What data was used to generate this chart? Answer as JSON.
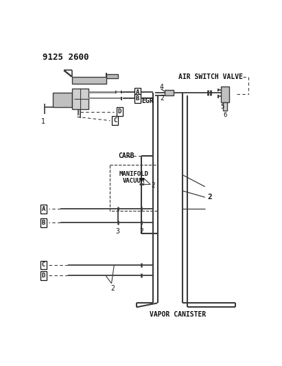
{
  "title": "9125 2600",
  "bg": "#ffffff",
  "lc": "#3a3a3a",
  "tc": "#111111",
  "egr_label": "EGR",
  "air_switch_label": "AIR SWITCH VALVE",
  "carb_label": "CARB",
  "mv_label": "MANIFOLD\nVACUUM",
  "vc_label": "VAPOR CANISTER",
  "num_1": "1",
  "num_2": "2",
  "num_3": "3",
  "num_4": "4",
  "num_5": "5",
  "num_6": "6",
  "box_A": "A",
  "box_B": "B",
  "box_C": "C",
  "box_D": "D"
}
